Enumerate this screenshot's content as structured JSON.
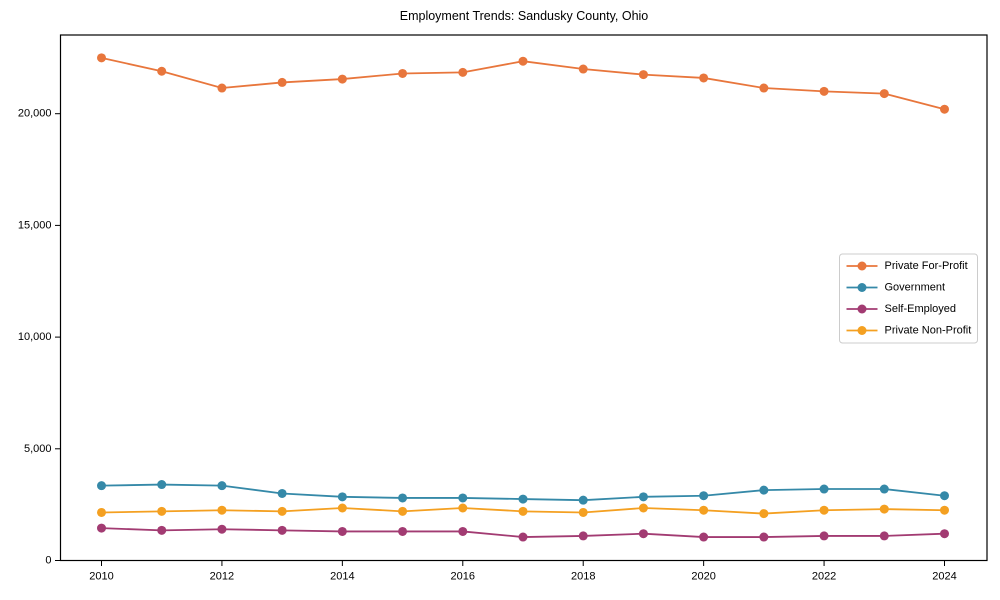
{
  "chart_data": {
    "type": "line",
    "title": "Employment Trends: Sandusky County, Ohio",
    "xlabel": "",
    "ylabel": "",
    "x": [
      2010,
      2011,
      2012,
      2013,
      2014,
      2015,
      2016,
      2017,
      2018,
      2019,
      2020,
      2021,
      2022,
      2023,
      2024
    ],
    "series": [
      {
        "name": "Private For-Profit",
        "color": "#E8763C",
        "values": [
          22500,
          21900,
          21150,
          21400,
          21550,
          21800,
          21850,
          22350,
          22000,
          21750,
          21600,
          21150,
          21000,
          20900,
          20200
        ]
      },
      {
        "name": "Government",
        "color": "#3589A8",
        "values": [
          3350,
          3400,
          3350,
          3000,
          2850,
          2800,
          2800,
          2750,
          2700,
          2850,
          2900,
          3150,
          3200,
          3200,
          2900
        ]
      },
      {
        "name": "Self-Employed",
        "color": "#A23B72",
        "values": [
          1450,
          1350,
          1400,
          1350,
          1300,
          1300,
          1300,
          1050,
          1100,
          1200,
          1050,
          1050,
          1100,
          1100,
          1200
        ]
      },
      {
        "name": "Private Non-Profit",
        "color": "#F4A021",
        "values": [
          2150,
          2200,
          2250,
          2200,
          2350,
          2200,
          2350,
          2200,
          2150,
          2350,
          2250,
          2100,
          2250,
          2300,
          2250
        ]
      }
    ],
    "x_ticks": {
      "values": [
        2010,
        2012,
        2014,
        2016,
        2018,
        2020,
        2022,
        2024
      ],
      "labels": [
        "2010",
        "2012",
        "2014",
        "2016",
        "2018",
        "2020",
        "2022",
        "2024"
      ]
    },
    "y_ticks": {
      "values": [
        0,
        5000,
        10000,
        15000,
        20000
      ],
      "labels": [
        "0",
        "5,000",
        "10,000",
        "15,000",
        "20,000"
      ]
    },
    "xlim": [
      2009.3,
      2024.7
    ],
    "ylim": [
      0,
      23500
    ],
    "grid": false,
    "legend_position": "center right",
    "marker": "circle",
    "axis_color": "#000000",
    "legend_border_color": "#cccccc",
    "legend_background": "#ffffff"
  }
}
